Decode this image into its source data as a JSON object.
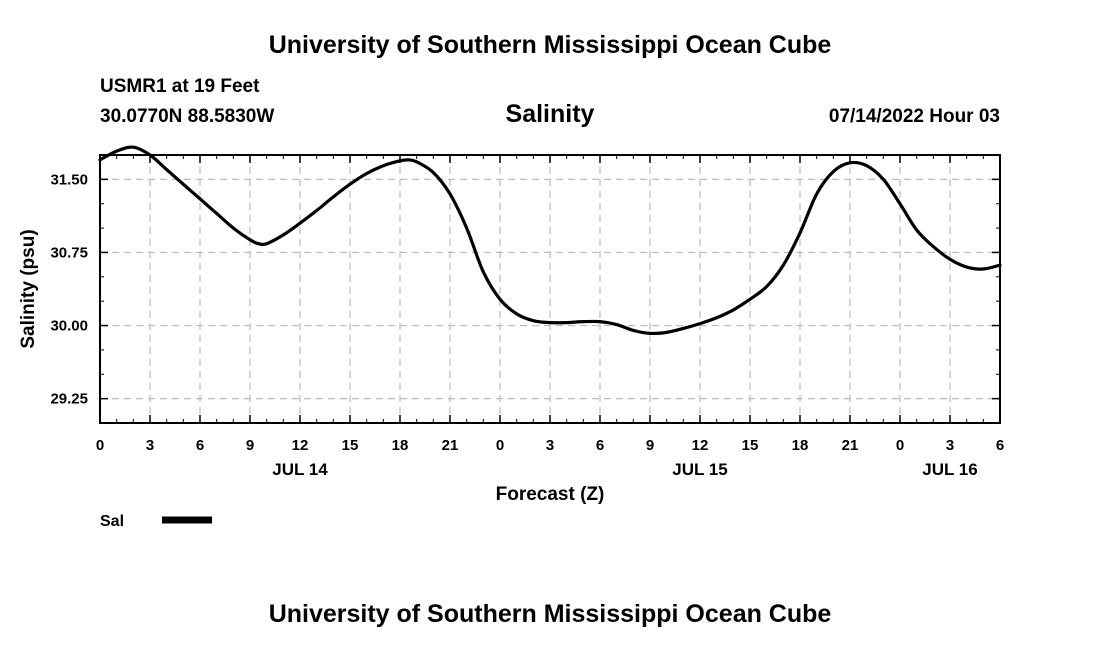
{
  "header": {
    "title": "University of Southern Mississippi Ocean Cube",
    "station": "USMR1 at 19 Feet",
    "coords": "30.0770N  88.5830W",
    "chart_title": "Salinity",
    "datetime": "07/14/2022 Hour 03"
  },
  "footer": {
    "title": "University of Southern Mississippi Ocean Cube"
  },
  "colors": {
    "line": "#000000",
    "grid": "#bbbbbb"
  },
  "chart_data": {
    "type": "line",
    "title": "Salinity",
    "xlabel": "Forecast (Z)",
    "ylabel": "Salinity (psu)",
    "xlim": [
      0,
      54
    ],
    "ylim": [
      29.0,
      31.75
    ],
    "yticks": [
      29.25,
      30.0,
      30.75,
      31.5
    ],
    "ytick_labels": [
      "29.25",
      "30.00",
      "30.75",
      "31.50"
    ],
    "xticks": [
      0,
      3,
      6,
      9,
      12,
      15,
      18,
      21,
      24,
      27,
      30,
      33,
      36,
      39,
      42,
      45,
      48,
      51,
      54
    ],
    "xtick_labels": [
      "0",
      "3",
      "6",
      "9",
      "12",
      "15",
      "18",
      "21",
      "0",
      "3",
      "6",
      "9",
      "12",
      "15",
      "18",
      "21",
      "0",
      "3",
      "6"
    ],
    "date_labels": [
      {
        "x": 12,
        "label": "JUL 14"
      },
      {
        "x": 36,
        "label": "JUL 15"
      },
      {
        "x": 51,
        "label": "JUL 16"
      }
    ],
    "grid": true,
    "legend": [
      {
        "label": "Sal",
        "position": "bottom-left"
      }
    ],
    "series": [
      {
        "name": "Sal",
        "x": [
          0,
          1,
          2,
          3,
          4,
          5,
          6,
          7,
          8,
          9,
          9.5,
          10,
          11,
          12,
          13,
          14,
          15,
          16,
          17,
          18,
          18.5,
          19,
          20,
          21,
          22,
          23,
          24,
          25,
          26,
          27,
          28,
          29,
          30,
          31,
          32,
          33,
          34,
          35,
          36,
          37,
          38,
          39,
          40,
          41,
          42,
          43,
          44,
          45,
          46,
          47,
          48,
          49,
          50,
          51,
          52,
          53,
          54
        ],
        "values": [
          31.7,
          31.79,
          31.83,
          31.75,
          31.6,
          31.45,
          31.3,
          31.15,
          31.0,
          30.88,
          30.84,
          30.84,
          30.93,
          31.05,
          31.18,
          31.32,
          31.45,
          31.56,
          31.64,
          31.69,
          31.7,
          31.68,
          31.57,
          31.35,
          31.0,
          30.55,
          30.27,
          30.12,
          30.05,
          30.03,
          30.03,
          30.04,
          30.04,
          30.01,
          29.95,
          29.92,
          29.93,
          29.97,
          30.02,
          30.08,
          30.16,
          30.27,
          30.4,
          30.62,
          30.95,
          31.35,
          31.58,
          31.67,
          31.64,
          31.5,
          31.25,
          30.98,
          30.81,
          30.68,
          30.6,
          30.58,
          30.62
        ]
      }
    ]
  }
}
